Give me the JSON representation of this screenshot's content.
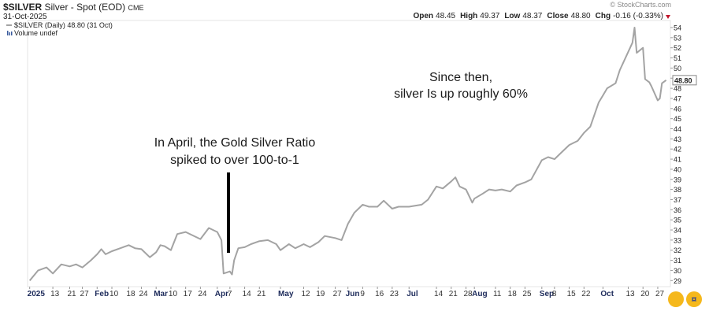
{
  "chart_data": {
    "type": "line",
    "symbol": "$SILVER",
    "title": "Silver - Spot (EOD)",
    "exchange": "CME",
    "date": "31-Oct-2025",
    "credit": "© StockCharts.com",
    "quote": [
      {
        "label": "Open",
        "value": "48.45"
      },
      {
        "label": "High",
        "value": "49.37"
      },
      {
        "label": "Low",
        "value": "48.37"
      },
      {
        "label": "Close",
        "value": "48.80"
      },
      {
        "label": "Chg",
        "value": "-0.16 (-0.33%)"
      }
    ],
    "volume_label": "Volume undef",
    "annotations": [
      {
        "lines": [
          "In April, the Gold Silver Ratio",
          "spiked to over 100-to-1"
        ]
      },
      {
        "lines": [
          "Since then,",
          "silver Is up roughly 60%"
        ]
      }
    ],
    "x": [
      "2025-01-02",
      "2025-01-06",
      "2025-01-10",
      "2025-01-13",
      "2025-01-17",
      "2025-01-21",
      "2025-01-24",
      "2025-01-27",
      "2025-01-31",
      "2025-02-03",
      "2025-02-05",
      "2025-02-07",
      "2025-02-10",
      "2025-02-14",
      "2025-02-18",
      "2025-02-21",
      "2025-02-24",
      "2025-02-28",
      "2025-03-03",
      "2025-03-05",
      "2025-03-07",
      "2025-03-10",
      "2025-03-13",
      "2025-03-17",
      "2025-03-20",
      "2025-03-24",
      "2025-03-28",
      "2025-04-01",
      "2025-04-03",
      "2025-04-04",
      "2025-04-07",
      "2025-04-08",
      "2025-04-09",
      "2025-04-11",
      "2025-04-14",
      "2025-04-17",
      "2025-04-21",
      "2025-04-25",
      "2025-04-29",
      "2025-05-01",
      "2025-05-05",
      "2025-05-08",
      "2025-05-12",
      "2025-05-15",
      "2025-05-19",
      "2025-05-22",
      "2025-05-27",
      "2025-05-30",
      "2025-06-02",
      "2025-06-05",
      "2025-06-09",
      "2025-06-12",
      "2025-06-16",
      "2025-06-19",
      "2025-06-23",
      "2025-06-26",
      "2025-07-01",
      "2025-07-07",
      "2025-07-10",
      "2025-07-14",
      "2025-07-17",
      "2025-07-21",
      "2025-07-23",
      "2025-07-25",
      "2025-07-28",
      "2025-07-31",
      "2025-08-01",
      "2025-08-05",
      "2025-08-08",
      "2025-08-11",
      "2025-08-14",
      "2025-08-18",
      "2025-08-21",
      "2025-08-25",
      "2025-08-28",
      "2025-09-02",
      "2025-09-05",
      "2025-09-08",
      "2025-09-11",
      "2025-09-15",
      "2025-09-19",
      "2025-09-22",
      "2025-09-25",
      "2025-09-29",
      "2025-10-01",
      "2025-10-03",
      "2025-10-07",
      "2025-10-09",
      "2025-10-13",
      "2025-10-15",
      "2025-10-16",
      "2025-10-17",
      "2025-10-20",
      "2025-10-21",
      "2025-10-23",
      "2025-10-24",
      "2025-10-27",
      "2025-10-28",
      "2025-10-29",
      "2025-10-31"
    ],
    "series": [
      {
        "name": "$SILVER (Daily) 48.80 (31 Oct)",
        "color": "#a3a3a3",
        "values": [
          29.0,
          30.0,
          30.3,
          29.7,
          30.6,
          30.4,
          30.6,
          30.3,
          31.0,
          31.6,
          32.1,
          31.6,
          31.9,
          32.2,
          32.5,
          32.2,
          32.1,
          31.3,
          31.8,
          32.5,
          32.4,
          32.0,
          33.6,
          33.8,
          33.5,
          33.1,
          34.2,
          33.8,
          33.0,
          29.7,
          29.9,
          29.6,
          31.0,
          32.2,
          32.3,
          32.6,
          32.9,
          33.0,
          32.6,
          32.0,
          32.6,
          32.2,
          32.6,
          32.3,
          32.8,
          33.4,
          33.2,
          33.0,
          34.6,
          35.7,
          36.5,
          36.3,
          36.3,
          36.9,
          36.1,
          36.3,
          36.3,
          36.5,
          37.0,
          38.3,
          38.1,
          38.8,
          39.2,
          38.3,
          38.0,
          36.7,
          37.1,
          37.6,
          38.0,
          37.9,
          38.0,
          37.8,
          38.4,
          38.7,
          39.0,
          40.9,
          41.2,
          41.0,
          41.6,
          42.4,
          42.8,
          43.6,
          44.2,
          46.6,
          47.3,
          48.0,
          48.5,
          49.8,
          51.6,
          52.5,
          54.0,
          51.5,
          52.0,
          48.9,
          48.6,
          48.2,
          46.8,
          47.0,
          48.5,
          48.8
        ],
        "value_labels": [
          null,
          null,
          null,
          null,
          null,
          null,
          null,
          null,
          null,
          null,
          null,
          null,
          null,
          null,
          null,
          null,
          null,
          null,
          null,
          null,
          null,
          null,
          null,
          null,
          null,
          null,
          null,
          null,
          null,
          null,
          null,
          null,
          null,
          null,
          null,
          null,
          null,
          null,
          null,
          null,
          null,
          null,
          null,
          null,
          null,
          null,
          null,
          null,
          null,
          null,
          null,
          null,
          null,
          null,
          null,
          null,
          null,
          null,
          null,
          null,
          null,
          null,
          null,
          null,
          null,
          null,
          null,
          null,
          null,
          null,
          null,
          null,
          null,
          null,
          null,
          null,
          null,
          null,
          null,
          null,
          null,
          null,
          null,
          null,
          null,
          null,
          null,
          null,
          null,
          null,
          null,
          null,
          null,
          null,
          null,
          null,
          null,
          null,
          null,
          "48.80"
        ]
      }
    ],
    "xlim": [
      "2025-01-01",
      "2025-11-02"
    ],
    "xticks": [
      {
        "value": "2025-01-02",
        "label": "2025"
      },
      {
        "value": "2025-01-13",
        "label": "13"
      },
      {
        "value": "2025-01-21",
        "label": "21"
      },
      {
        "value": "2025-01-27",
        "label": "27"
      },
      {
        "value": "2025-02-03",
        "label": "Feb"
      },
      {
        "value": "2025-02-10",
        "label": "10"
      },
      {
        "value": "2025-02-18",
        "label": "18"
      },
      {
        "value": "2025-02-24",
        "label": "24"
      },
      {
        "value": "2025-03-03",
        "label": "Mar"
      },
      {
        "value": "2025-03-10",
        "label": "10"
      },
      {
        "value": "2025-03-17",
        "label": "17"
      },
      {
        "value": "2025-03-24",
        "label": "24"
      },
      {
        "value": "2025-04-01",
        "label": "Apr"
      },
      {
        "value": "2025-04-07",
        "label": "7"
      },
      {
        "value": "2025-04-14",
        "label": "14"
      },
      {
        "value": "2025-04-21",
        "label": "21"
      },
      {
        "value": "2025-05-01",
        "label": "May"
      },
      {
        "value": "2025-05-12",
        "label": "12"
      },
      {
        "value": "2025-05-19",
        "label": "19"
      },
      {
        "value": "2025-05-27",
        "label": "27"
      },
      {
        "value": "2025-06-02",
        "label": "Jun"
      },
      {
        "value": "2025-06-09",
        "label": "9"
      },
      {
        "value": "2025-06-16",
        "label": "16"
      },
      {
        "value": "2025-06-23",
        "label": "23"
      },
      {
        "value": "2025-07-01",
        "label": "Jul"
      },
      {
        "value": "2025-07-14",
        "label": "14"
      },
      {
        "value": "2025-07-21",
        "label": "21"
      },
      {
        "value": "2025-07-28",
        "label": "28"
      },
      {
        "value": "2025-08-01",
        "label": "Aug"
      },
      {
        "value": "2025-08-11",
        "label": "11"
      },
      {
        "value": "2025-08-18",
        "label": "18"
      },
      {
        "value": "2025-08-25",
        "label": "25"
      },
      {
        "value": "2025-09-02",
        "label": "Sep"
      },
      {
        "value": "2025-09-08",
        "label": "8"
      },
      {
        "value": "2025-09-15",
        "label": "15"
      },
      {
        "value": "2025-09-22",
        "label": "22"
      },
      {
        "value": "2025-10-01",
        "label": "Oct"
      },
      {
        "value": "2025-10-13",
        "label": "13"
      },
      {
        "value": "2025-10-20",
        "label": "20"
      },
      {
        "value": "2025-10-27",
        "label": "27"
      }
    ],
    "ylim": [
      28.4,
      54.7
    ],
    "yticks": [
      29,
      30,
      31,
      32,
      33,
      34,
      35,
      36,
      37,
      38,
      39,
      40,
      41,
      42,
      43,
      44,
      45,
      46,
      47,
      48,
      49,
      50,
      51,
      52,
      53,
      54
    ],
    "grid": false
  }
}
